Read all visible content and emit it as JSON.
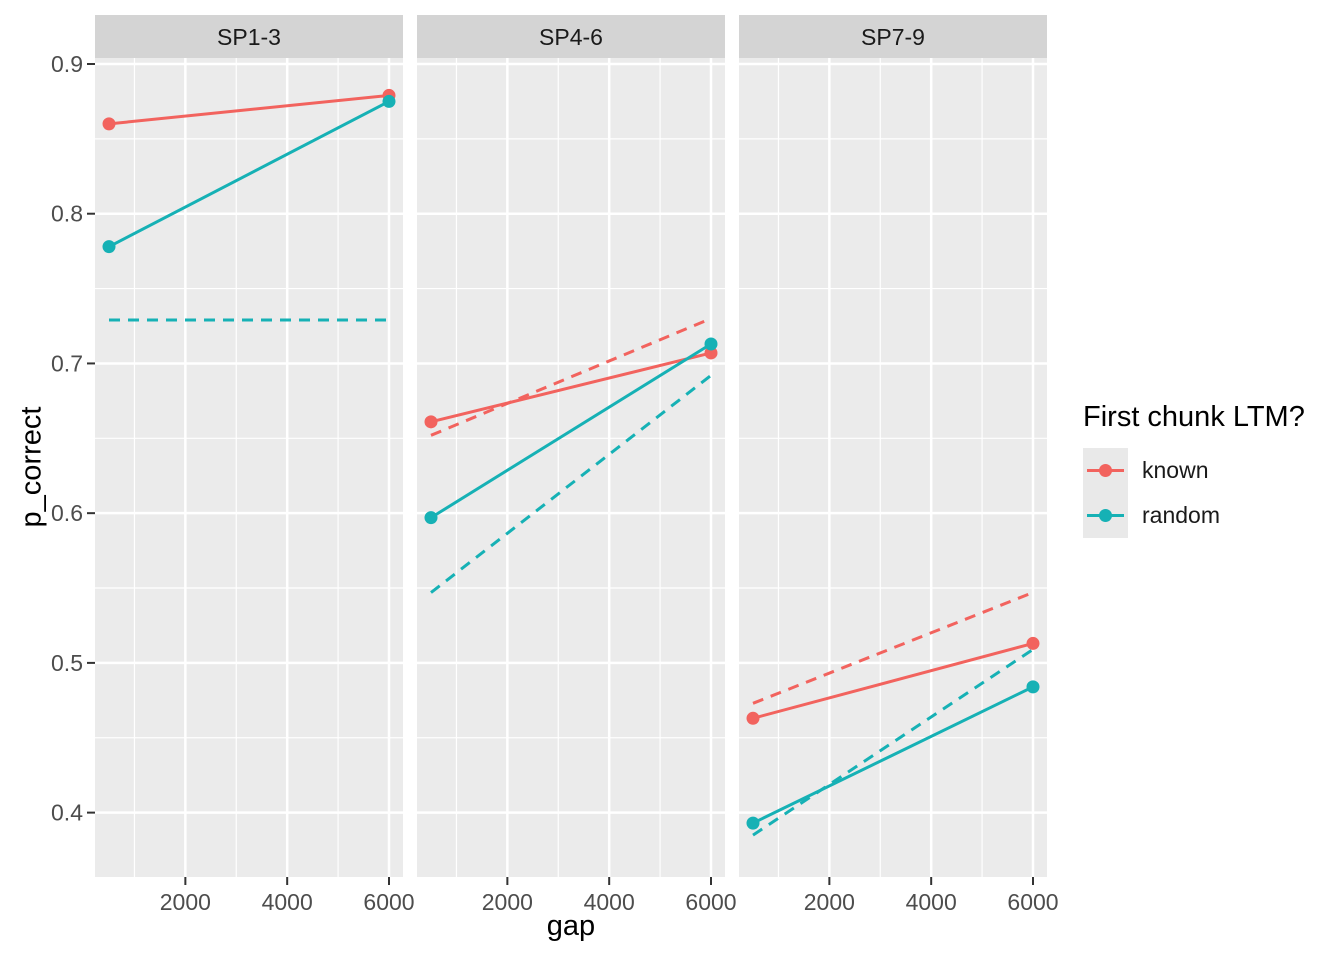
{
  "figure": {
    "colors": {
      "panel_bg": "#EBEBEB",
      "strip_bg": "#D4D4D4",
      "grid": "#FFFFFF",
      "tick_mark": "#333333",
      "tick_label": "#4D4D4D",
      "axis_title": "#000000",
      "strip_text": "#1A1A1A",
      "legend_key_bg": "#E9E9E9"
    }
  },
  "chart_data": {
    "type": "line",
    "title": "",
    "xlabel": "gap",
    "ylabel": "p_correct",
    "xlim": [
      225,
      6275
    ],
    "ylim": [
      0.357,
      0.904
    ],
    "grid": "on",
    "legend_position": "right",
    "x_ticks": [
      2000,
      4000,
      6000
    ],
    "x_tick_labels": [
      "2000",
      "4000",
      "6000"
    ],
    "x_minor_ticks": [
      1000,
      3000,
      5000
    ],
    "y_ticks": [
      0.4,
      0.5,
      0.6,
      0.7,
      0.8,
      0.9
    ],
    "y_tick_labels": [
      "0.4",
      "0.5",
      "0.6",
      "0.7",
      "0.8",
      "0.9"
    ],
    "y_minor_ticks": [
      0.45,
      0.55,
      0.65,
      0.75,
      0.85
    ],
    "series_colors": {
      "known": "#F2635E",
      "random": "#16B1B5"
    },
    "facets": [
      {
        "label": "SP1-3",
        "series": [
          {
            "name": "known",
            "linetype": "solid",
            "points": true,
            "x": [
              500,
              6000
            ],
            "y": [
              0.86,
              0.879
            ]
          },
          {
            "name": "random",
            "linetype": "solid",
            "points": true,
            "x": [
              500,
              6000
            ],
            "y": [
              0.778,
              0.875
            ]
          },
          {
            "name": "random",
            "linetype": "dashed",
            "points": false,
            "x": [
              500,
              6000
            ],
            "y": [
              0.729,
              0.729
            ]
          }
        ]
      },
      {
        "label": "SP4-6",
        "series": [
          {
            "name": "known",
            "linetype": "solid",
            "points": true,
            "x": [
              500,
              6000
            ],
            "y": [
              0.661,
              0.707
            ]
          },
          {
            "name": "random",
            "linetype": "solid",
            "points": true,
            "x": [
              500,
              6000
            ],
            "y": [
              0.597,
              0.713
            ]
          },
          {
            "name": "known",
            "linetype": "dashed",
            "points": false,
            "x": [
              500,
              6000
            ],
            "y": [
              0.652,
              0.73
            ]
          },
          {
            "name": "random",
            "linetype": "dashed",
            "points": false,
            "x": [
              500,
              6000
            ],
            "y": [
              0.547,
              0.692
            ]
          }
        ]
      },
      {
        "label": "SP7-9",
        "series": [
          {
            "name": "known",
            "linetype": "solid",
            "points": true,
            "x": [
              500,
              6000
            ],
            "y": [
              0.463,
              0.513
            ]
          },
          {
            "name": "random",
            "linetype": "solid",
            "points": true,
            "x": [
              500,
              6000
            ],
            "y": [
              0.393,
              0.484
            ]
          },
          {
            "name": "known",
            "linetype": "dashed",
            "points": false,
            "x": [
              500,
              6000
            ],
            "y": [
              0.473,
              0.547
            ]
          },
          {
            "name": "random",
            "linetype": "dashed",
            "points": false,
            "x": [
              500,
              6000
            ],
            "y": [
              0.385,
              0.509
            ]
          }
        ]
      }
    ],
    "legend": {
      "title": "First chunk LTM?",
      "entries": [
        {
          "label": "known",
          "color": "#F2635E"
        },
        {
          "label": "random",
          "color": "#16B1B5"
        }
      ]
    }
  }
}
